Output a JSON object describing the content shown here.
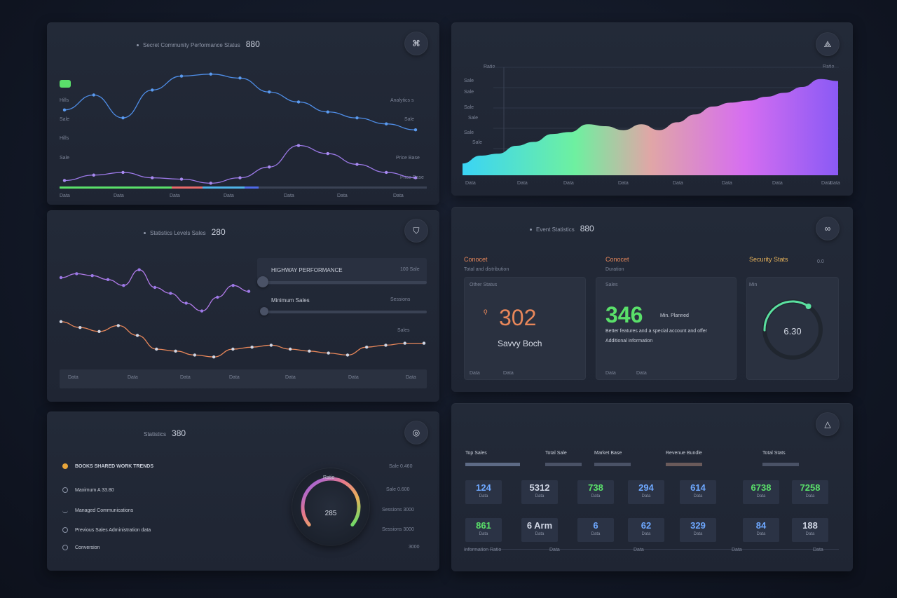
{
  "colors": {
    "panel": "#222938",
    "blue_line": "#4f8ee8",
    "purple_line": "#9c79e8",
    "green_accent": "#5ae06a",
    "orange_accent": "#e8875a"
  },
  "panel_top_left": {
    "header_text": "Secret Community Performance Status",
    "header_value": "880",
    "icon": "graph-icon",
    "left_labels": [
      "Hills",
      "Sale",
      "Hills",
      "Sale"
    ],
    "right_labels": [
      "Analytics s",
      "Sale",
      "Price Base",
      "Price Base"
    ],
    "x_labels": [
      "Data",
      "Data",
      "Data",
      "Data",
      "Data",
      "Data",
      "Data"
    ],
    "chart_data": {
      "type": "line",
      "series": [
        {
          "values": [
            60,
            75,
            52,
            80,
            94,
            96,
            92,
            78,
            68,
            58,
            52,
            46,
            40
          ]
        },
        {
          "values": [
            18,
            22,
            24,
            20,
            19,
            16,
            20,
            28,
            44,
            38,
            30,
            24,
            20
          ]
        }
      ],
      "ylim": [
        0,
        100
      ]
    },
    "legend_segments": [
      "#5ae06a",
      "#e86a6a",
      "#4fb3e8",
      "#4f6ae8",
      "#3a4254"
    ]
  },
  "panel_top_right": {
    "icon": "share-icon",
    "y_labels": [
      "Ratio",
      "Sale",
      "Sale",
      "Sale",
      "Sale",
      "Sale",
      "Sale"
    ],
    "right_label": "Ratio",
    "x_labels": [
      "Data",
      "Data",
      "Data",
      "Data",
      "Data",
      "Data",
      "Data",
      "Data",
      "Data"
    ],
    "chart_data": {
      "type": "area",
      "values": [
        12,
        20,
        22,
        30,
        34,
        42,
        44,
        52,
        50,
        46,
        52,
        46,
        54,
        62,
        70,
        74,
        76,
        80,
        84,
        90,
        98,
        96
      ],
      "ylim": [
        0,
        100
      ]
    }
  },
  "panel_mid_left": {
    "header_text": "Statistics Levels Sales",
    "header_value": "280",
    "icon": "shield-icon",
    "slider_1_label": "HIGHWAY PERFORMANCE",
    "slider_1_value": "100 Sale",
    "slider_1_level": 0,
    "slider_2_label": "Minimum Sales",
    "slider_2_value": "Sessions",
    "slider_2_level": 0,
    "side_label": "Sales",
    "x_labels": [
      "Data",
      "Data",
      "Data",
      "Data",
      "Data",
      "Data",
      "Data"
    ],
    "chart_data": {
      "type": "line",
      "series": [
        {
          "values": [
            60,
            64,
            62,
            58,
            52,
            68,
            50,
            44,
            34,
            26,
            40,
            52,
            46
          ]
        },
        {
          "values": [
            58,
            52,
            48,
            54,
            44,
            30,
            28,
            24,
            22,
            30,
            32,
            34,
            30,
            28,
            26,
            24,
            32,
            34,
            36,
            36
          ]
        }
      ],
      "ylim": [
        0,
        100
      ]
    }
  },
  "panel_mid_right": {
    "header_text": "Event Statistics",
    "header_value": "880",
    "icon": "infinity-icon",
    "col1_title": "Conocet",
    "col1_sub": "Total and distribution",
    "col2_title": "Conocet",
    "col2_sub": "Duration",
    "col3_title": "Security Stats",
    "col3_value": "0.0",
    "card1_label": "Other Status",
    "card1_value": "302",
    "card1_caption": "Savvy Boch",
    "card2_label": "Sales",
    "card2_value": "346",
    "card2_unit": "Min. Planned",
    "card2_desc_1": "Better features and a special account and offer",
    "card2_desc_2": "Additional information",
    "card3_label": "Min",
    "card3_value": "6.30",
    "card3_level": 0.7,
    "footer_labels": [
      "Data",
      "Data",
      "Data",
      "Data"
    ]
  },
  "panel_bot_left": {
    "header_text": "Statistics",
    "header_value": "380",
    "icon": "target-icon",
    "rows": [
      {
        "label": "BOOKS SHARED WORK TRENDS",
        "value": "Sale 0.460"
      },
      {
        "label": "Maximum A 33.80",
        "value": "Sale 0.600"
      },
      {
        "label": "Managed Communications",
        "value": "Sessions 3000"
      },
      {
        "label": "Previous Sales Administration data",
        "value": "Sessions 3000"
      },
      {
        "label": "Conversion",
        "value": "3000"
      }
    ],
    "gauge_label": "Ratio",
    "gauge_value": "285",
    "gauge_level": 0.72
  },
  "panel_bot_right": {
    "icon": "triangle-icon",
    "tabs": [
      "Top Sales",
      "Total Sale",
      "Market Base",
      "Revenue Bundle",
      "Total Stats"
    ],
    "tiles_row1": [
      {
        "v": "124",
        "s": "Data",
        "c": "#6ea8ff"
      },
      {
        "v": "5312",
        "s": "Data",
        "c": "#d0d6e4"
      },
      {
        "v": "738",
        "s": "Data",
        "c": "#5ae06a"
      },
      {
        "v": "294",
        "s": "Data",
        "c": "#6ea8ff"
      },
      {
        "v": "614",
        "s": "Data",
        "c": "#6ea8ff"
      },
      {
        "v": "6738",
        "s": "Data",
        "c": "#5ae06a"
      },
      {
        "v": "7258",
        "s": "Data",
        "c": "#5ae06a"
      }
    ],
    "tiles_row2": [
      {
        "v": "861",
        "s": "Data",
        "c": "#5ae06a"
      },
      {
        "v": "6 Arm",
        "s": "Data",
        "c": "#d0d6e4"
      },
      {
        "v": "6",
        "s": "Data",
        "c": "#6ea8ff"
      },
      {
        "v": "62",
        "s": "Data",
        "c": "#6ea8ff"
      },
      {
        "v": "329",
        "s": "Data",
        "c": "#6ea8ff"
      },
      {
        "v": "84",
        "s": "Data",
        "c": "#6ea8ff"
      },
      {
        "v": "188",
        "s": "Data",
        "c": "#d0d6e4"
      }
    ],
    "footer_labels": [
      "Information Ratio",
      "Data",
      "Data",
      "Data",
      "Data"
    ]
  }
}
